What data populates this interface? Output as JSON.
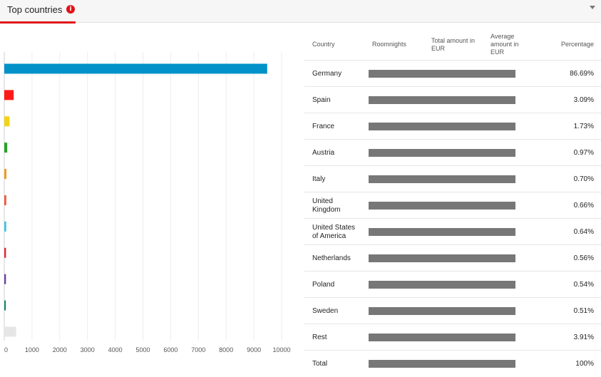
{
  "header": {
    "title": "Top countries",
    "info_glyph": "i"
  },
  "table": {
    "columns": [
      "Country",
      "Roomnights",
      "Total amount in EUR",
      "Average amount in EUR",
      "Percentage"
    ],
    "rows": [
      {
        "country": "Germany",
        "percentage": "86.69%"
      },
      {
        "country": "Spain",
        "percentage": "3.09%"
      },
      {
        "country": "France",
        "percentage": "1.73%"
      },
      {
        "country": "Austria",
        "percentage": "0.97%"
      },
      {
        "country": "Italy",
        "percentage": "0.70%"
      },
      {
        "country": "United Kingdom",
        "percentage": "0.66%"
      },
      {
        "country": "United States of America",
        "percentage": "0.64%"
      },
      {
        "country": "Netherlands",
        "percentage": "0.56%"
      },
      {
        "country": "Poland",
        "percentage": "0.54%"
      },
      {
        "country": "Sweden",
        "percentage": "0.51%"
      },
      {
        "country": "Rest",
        "percentage": "3.91%"
      },
      {
        "country": "Total",
        "percentage": "100%"
      }
    ]
  },
  "chart_data": {
    "type": "bar",
    "orientation": "horizontal",
    "categories": [
      "Germany",
      "Spain",
      "France",
      "Austria",
      "Italy",
      "United Kingdom",
      "United States of America",
      "Netherlands",
      "Poland",
      "Sweden",
      "Rest"
    ],
    "values": [
      9480,
      338,
      190,
      106,
      77,
      72,
      70,
      61,
      59,
      56,
      428
    ],
    "colors": [
      "#0092c8",
      "#ff1a1a",
      "#f3d31a",
      "#2aa12a",
      "#f39a1d",
      "#ee5a3c",
      "#3fc2e6",
      "#e3262e",
      "#6a3fa0",
      "#17866a",
      "#e6e6e6"
    ],
    "xlim": [
      0,
      10000
    ],
    "xticks": [
      "0",
      "1000",
      "2000",
      "3000",
      "4000",
      "5000",
      "6000",
      "7000",
      "8000",
      "9000",
      "10000"
    ],
    "grid": true
  }
}
